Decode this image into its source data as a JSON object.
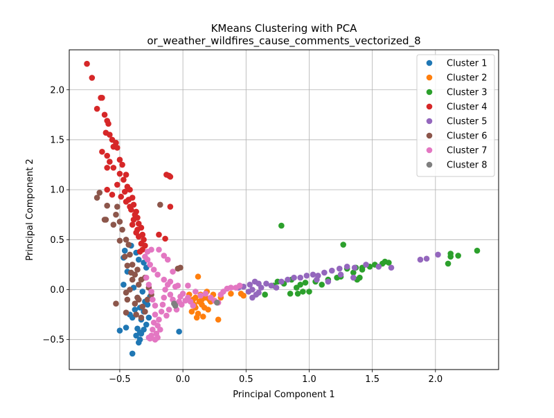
{
  "figure": {
    "title_line1": "KMeans Clustering with PCA",
    "title_line2": "or_weather_wildfires_cause_comments_vectorized_8"
  },
  "chart_data": {
    "type": "scatter",
    "title": "KMeans Clustering with PCA\nor_weather_wildfires_cause_comments_vectorized_8",
    "xlabel": "Principal Component 1",
    "ylabel": "Principal Component 2",
    "xlim": [
      -0.9,
      2.5
    ],
    "ylim": [
      -0.8,
      2.4
    ],
    "xticks": [
      -0.5,
      0.0,
      0.5,
      1.0,
      1.5,
      2.0
    ],
    "xtick_labels": [
      "−0.5",
      "0.0",
      "0.5",
      "1.0",
      "1.5",
      "2.0"
    ],
    "yticks": [
      -0.5,
      0.0,
      0.5,
      1.0,
      1.5,
      2.0
    ],
    "ytick_labels": [
      "−0.5",
      "0.0",
      "0.5",
      "1.0",
      "1.5",
      "2.0"
    ],
    "grid": true,
    "legend_position": "top-right",
    "series": [
      {
        "name": "Cluster 1",
        "color": "#1f77b4",
        "points": [
          [
            -0.5,
            -0.41
          ],
          [
            -0.45,
            -0.38
          ],
          [
            -0.4,
            -0.64
          ],
          [
            -0.35,
            -0.53
          ],
          [
            -0.34,
            -0.5
          ],
          [
            -0.33,
            -0.44
          ],
          [
            -0.36,
            -0.39
          ],
          [
            -0.4,
            -0.28
          ],
          [
            -0.42,
            -0.25
          ],
          [
            -0.38,
            -0.2
          ],
          [
            -0.34,
            -0.18
          ],
          [
            -0.3,
            -0.12
          ],
          [
            -0.31,
            -0.22
          ],
          [
            -0.33,
            -0.3
          ],
          [
            -0.29,
            -0.35
          ],
          [
            -0.27,
            -0.28
          ],
          [
            -0.36,
            -0.08
          ],
          [
            -0.39,
            0.02
          ],
          [
            -0.47,
            0.05
          ],
          [
            -0.44,
            0.18
          ],
          [
            -0.47,
            0.32
          ],
          [
            -0.46,
            0.39
          ],
          [
            -0.41,
            0.44
          ],
          [
            -0.37,
            0.37
          ],
          [
            -0.35,
            0.3
          ],
          [
            -0.31,
            0.27
          ],
          [
            -0.29,
            0.22
          ],
          [
            -0.32,
            -0.02
          ],
          [
            -0.28,
            -0.15
          ],
          [
            -0.26,
            -0.07
          ],
          [
            -0.03,
            -0.42
          ],
          [
            -0.34,
            -0.43
          ],
          [
            -0.37,
            -0.46
          ],
          [
            -0.31,
            -0.4
          ]
        ]
      },
      {
        "name": "Cluster 2",
        "color": "#ff7f0e",
        "points": [
          [
            0.12,
            0.13
          ],
          [
            0.05,
            -0.05
          ],
          [
            0.08,
            -0.1
          ],
          [
            0.1,
            -0.18
          ],
          [
            0.12,
            -0.24
          ],
          [
            0.15,
            -0.15
          ],
          [
            0.18,
            -0.08
          ],
          [
            0.2,
            -0.2
          ],
          [
            0.16,
            -0.27
          ],
          [
            0.11,
            -0.28
          ],
          [
            0.07,
            -0.22
          ],
          [
            0.14,
            -0.05
          ],
          [
            0.19,
            -0.02
          ],
          [
            0.22,
            -0.12
          ],
          [
            0.24,
            -0.05
          ],
          [
            0.28,
            -0.3
          ],
          [
            0.13,
            -0.12
          ],
          [
            0.17,
            -0.18
          ],
          [
            0.21,
            -0.1
          ],
          [
            0.15,
            -0.1
          ],
          [
            0.46,
            -0.04
          ],
          [
            0.48,
            -0.06
          ],
          [
            0.38,
            -0.04
          ],
          [
            0.3,
            -0.08
          ],
          [
            0.1,
            -0.08
          ],
          [
            0.09,
            -0.15
          ]
        ]
      },
      {
        "name": "Cluster 3",
        "color": "#2ca02c",
        "points": [
          [
            0.78,
            0.64
          ],
          [
            1.27,
            0.45
          ],
          [
            2.33,
            0.39
          ],
          [
            2.12,
            0.36
          ],
          [
            2.12,
            0.33
          ],
          [
            2.18,
            0.34
          ],
          [
            2.1,
            0.26
          ],
          [
            1.63,
            0.27
          ],
          [
            1.58,
            0.26
          ],
          [
            1.52,
            0.25
          ],
          [
            1.6,
            0.28
          ],
          [
            1.48,
            0.23
          ],
          [
            1.42,
            0.22
          ],
          [
            1.37,
            0.22
          ],
          [
            1.3,
            0.21
          ],
          [
            1.42,
            0.2
          ],
          [
            1.35,
            0.17
          ],
          [
            1.38,
            0.1
          ],
          [
            1.4,
            0.12
          ],
          [
            1.25,
            0.13
          ],
          [
            1.22,
            0.12
          ],
          [
            1.15,
            0.1
          ],
          [
            1.05,
            0.08
          ],
          [
            0.97,
            0.07
          ],
          [
            0.93,
            0.05
          ],
          [
            0.86,
            0.1
          ],
          [
            0.8,
            0.06
          ],
          [
            0.75,
            0.08
          ],
          [
            0.72,
            0.04
          ],
          [
            0.9,
            0.02
          ],
          [
            0.95,
            -0.02
          ],
          [
            1.0,
            -0.02
          ],
          [
            0.91,
            -0.04
          ],
          [
            0.85,
            -0.04
          ],
          [
            0.65,
            -0.05
          ],
          [
            1.1,
            0.05
          ]
        ]
      },
      {
        "name": "Cluster 4",
        "color": "#d62728",
        "points": [
          [
            -0.76,
            2.26
          ],
          [
            -0.72,
            2.12
          ],
          [
            -0.65,
            1.92
          ],
          [
            -0.64,
            1.92
          ],
          [
            -0.68,
            1.81
          ],
          [
            -0.62,
            1.75
          ],
          [
            -0.6,
            1.69
          ],
          [
            -0.59,
            1.66
          ],
          [
            -0.61,
            1.57
          ],
          [
            -0.58,
            1.55
          ],
          [
            -0.56,
            1.5
          ],
          [
            -0.53,
            1.47
          ],
          [
            -0.55,
            1.43
          ],
          [
            -0.52,
            1.42
          ],
          [
            -0.64,
            1.38
          ],
          [
            -0.6,
            1.34
          ],
          [
            -0.58,
            1.28
          ],
          [
            -0.6,
            1.22
          ],
          [
            -0.55,
            1.22
          ],
          [
            -0.5,
            1.3
          ],
          [
            -0.48,
            1.25
          ],
          [
            -0.5,
            1.16
          ],
          [
            -0.45,
            1.15
          ],
          [
            -0.47,
            1.1
          ],
          [
            -0.44,
            1.03
          ],
          [
            -0.42,
            1.0
          ],
          [
            -0.46,
            0.98
          ],
          [
            -0.4,
            0.92
          ],
          [
            -0.43,
            0.9
          ],
          [
            -0.39,
            0.85
          ],
          [
            -0.41,
            0.8
          ],
          [
            -0.37,
            0.78
          ],
          [
            -0.36,
            0.72
          ],
          [
            -0.39,
            0.7
          ],
          [
            -0.35,
            0.66
          ],
          [
            -0.33,
            0.62
          ],
          [
            -0.36,
            0.6
          ],
          [
            -0.32,
            0.55
          ],
          [
            -0.35,
            0.53
          ],
          [
            -0.31,
            0.5
          ],
          [
            -0.33,
            0.46
          ],
          [
            -0.3,
            0.44
          ],
          [
            -0.32,
            0.4
          ],
          [
            -0.34,
            0.38
          ],
          [
            -0.6,
            1.0
          ],
          [
            -0.56,
            0.95
          ],
          [
            -0.52,
            1.05
          ],
          [
            -0.49,
            0.93
          ],
          [
            -0.45,
            0.88
          ],
          [
            -0.42,
            0.83
          ],
          [
            -0.38,
            0.75
          ],
          [
            -0.4,
            0.65
          ],
          [
            -0.37,
            0.57
          ],
          [
            -0.13,
            1.15
          ],
          [
            -0.11,
            1.14
          ],
          [
            -0.1,
            1.13
          ],
          [
            -0.1,
            0.83
          ],
          [
            -0.19,
            0.55
          ],
          [
            -0.14,
            0.51
          ]
        ]
      },
      {
        "name": "Cluster 5",
        "color": "#9467bd",
        "points": [
          [
            0.48,
            0.03
          ],
          [
            0.53,
            0.05
          ],
          [
            0.57,
            0.08
          ],
          [
            0.6,
            0.06
          ],
          [
            0.55,
            0.0
          ],
          [
            0.58,
            -0.05
          ],
          [
            0.55,
            -0.08
          ],
          [
            0.62,
            0.02
          ],
          [
            0.66,
            0.06
          ],
          [
            0.7,
            0.04
          ],
          [
            0.74,
            0.02
          ],
          [
            0.78,
            0.08
          ],
          [
            0.83,
            0.1
          ],
          [
            0.88,
            0.12
          ],
          [
            0.93,
            0.12
          ],
          [
            0.98,
            0.14
          ],
          [
            1.03,
            0.15
          ],
          [
            1.07,
            0.14
          ],
          [
            1.12,
            0.17
          ],
          [
            1.18,
            0.19
          ],
          [
            1.24,
            0.21
          ],
          [
            1.3,
            0.23
          ],
          [
            1.36,
            0.22
          ],
          [
            1.45,
            0.25
          ],
          [
            1.55,
            0.23
          ],
          [
            1.65,
            0.22
          ],
          [
            1.88,
            0.3
          ],
          [
            1.93,
            0.31
          ],
          [
            2.02,
            0.35
          ],
          [
            1.06,
            0.1
          ],
          [
            1.15,
            0.08
          ],
          [
            1.25,
            0.15
          ],
          [
            1.35,
            0.12
          ],
          [
            0.52,
            -0.02
          ],
          [
            0.6,
            -0.03
          ],
          [
            0.44,
            0.02
          ]
        ]
      },
      {
        "name": "Cluster 6",
        "color": "#8c564b",
        "points": [
          [
            -0.68,
            0.92
          ],
          [
            -0.66,
            0.97
          ],
          [
            -0.62,
            0.7
          ],
          [
            -0.61,
            0.7
          ],
          [
            -0.6,
            0.84
          ],
          [
            -0.55,
            0.65
          ],
          [
            -0.53,
            0.75
          ],
          [
            -0.52,
            0.83
          ],
          [
            -0.5,
            0.68
          ],
          [
            -0.48,
            0.6
          ],
          [
            -0.5,
            0.49
          ],
          [
            -0.45,
            0.5
          ],
          [
            -0.43,
            0.45
          ],
          [
            -0.46,
            0.33
          ],
          [
            -0.44,
            0.24
          ],
          [
            -0.41,
            0.17
          ],
          [
            -0.4,
            0.1
          ],
          [
            -0.42,
            0.0
          ],
          [
            -0.45,
            -0.03
          ],
          [
            -0.44,
            -0.1
          ],
          [
            -0.38,
            -0.14
          ],
          [
            -0.36,
            -0.08
          ],
          [
            -0.35,
            -0.1
          ],
          [
            -0.53,
            -0.14
          ],
          [
            -0.45,
            -0.23
          ],
          [
            -0.32,
            -0.17
          ],
          [
            -0.33,
            -0.28
          ],
          [
            -0.37,
            -0.25
          ],
          [
            -0.3,
            -0.22
          ],
          [
            -0.28,
            -0.1
          ],
          [
            -0.35,
            0.05
          ],
          [
            -0.33,
            0.1
          ],
          [
            -0.38,
            0.15
          ],
          [
            -0.4,
            0.25
          ],
          [
            -0.42,
            0.35
          ],
          [
            -0.18,
            0.85
          ],
          [
            -0.02,
            0.22
          ],
          [
            -0.04,
            0.21
          ],
          [
            -0.3,
            0.12
          ],
          [
            -0.27,
            0.02
          ],
          [
            -0.25,
            -0.05
          ],
          [
            -0.36,
            0.2
          ]
        ]
      },
      {
        "name": "Cluster 7",
        "color": "#e377c2",
        "points": [
          [
            -0.29,
            0.12
          ],
          [
            -0.27,
            0.05
          ],
          [
            -0.25,
            -0.02
          ],
          [
            -0.24,
            -0.1
          ],
          [
            -0.22,
            -0.16
          ],
          [
            -0.22,
            -0.25
          ],
          [
            -0.23,
            -0.33
          ],
          [
            -0.24,
            -0.4
          ],
          [
            -0.25,
            -0.46
          ],
          [
            -0.26,
            -0.49
          ],
          [
            -0.27,
            -0.48
          ],
          [
            -0.21,
            -0.44
          ],
          [
            -0.2,
            -0.36
          ],
          [
            -0.19,
            -0.3
          ],
          [
            -0.17,
            -0.22
          ],
          [
            -0.16,
            -0.15
          ],
          [
            -0.15,
            -0.08
          ],
          [
            -0.14,
            0.0
          ],
          [
            -0.12,
            0.05
          ],
          [
            -0.1,
            -0.05
          ],
          [
            -0.08,
            -0.1
          ],
          [
            -0.06,
            -0.14
          ],
          [
            -0.05,
            -0.2
          ],
          [
            -0.03,
            -0.12
          ],
          [
            -0.02,
            -0.07
          ],
          [
            -0.01,
            -0.15
          ],
          [
            -0.06,
            0.03
          ],
          [
            -0.1,
            0.08
          ],
          [
            -0.15,
            0.1
          ],
          [
            -0.2,
            0.15
          ],
          [
            -0.23,
            0.2
          ],
          [
            -0.26,
            0.25
          ],
          [
            -0.28,
            0.3
          ],
          [
            -0.3,
            0.33
          ],
          [
            -0.28,
            0.38
          ],
          [
            -0.25,
            0.4
          ],
          [
            -0.19,
            0.4
          ],
          [
            -0.15,
            0.34
          ],
          [
            -0.12,
            0.3
          ],
          [
            -0.08,
            0.18
          ],
          [
            -0.04,
            0.04
          ],
          [
            0.0,
            -0.04
          ],
          [
            0.04,
            -0.08
          ],
          [
            0.06,
            -0.12
          ],
          [
            0.08,
            -0.16
          ],
          [
            0.1,
            -0.02
          ],
          [
            0.14,
            -0.06
          ],
          [
            0.18,
            -0.04
          ],
          [
            0.22,
            -0.08
          ],
          [
            0.25,
            -0.11
          ],
          [
            0.28,
            -0.13
          ],
          [
            0.3,
            -0.05
          ],
          [
            0.32,
            -0.02
          ],
          [
            0.35,
            0.01
          ],
          [
            0.38,
            0.02
          ],
          [
            0.42,
            0.02
          ],
          [
            0.45,
            0.04
          ],
          [
            0.04,
            0.04
          ],
          [
            0.02,
            -0.11
          ],
          [
            -0.18,
            -0.4
          ],
          [
            -0.2,
            -0.48
          ],
          [
            -0.22,
            -0.5
          ],
          [
            -0.13,
            -0.26
          ],
          [
            -0.11,
            -0.2
          ]
        ]
      },
      {
        "name": "Cluster 8",
        "color": "#7f7f7f",
        "points": [
          [
            -0.07,
            -0.14
          ],
          [
            -0.06,
            -0.16
          ],
          [
            0.27,
            -0.13
          ]
        ]
      }
    ]
  }
}
